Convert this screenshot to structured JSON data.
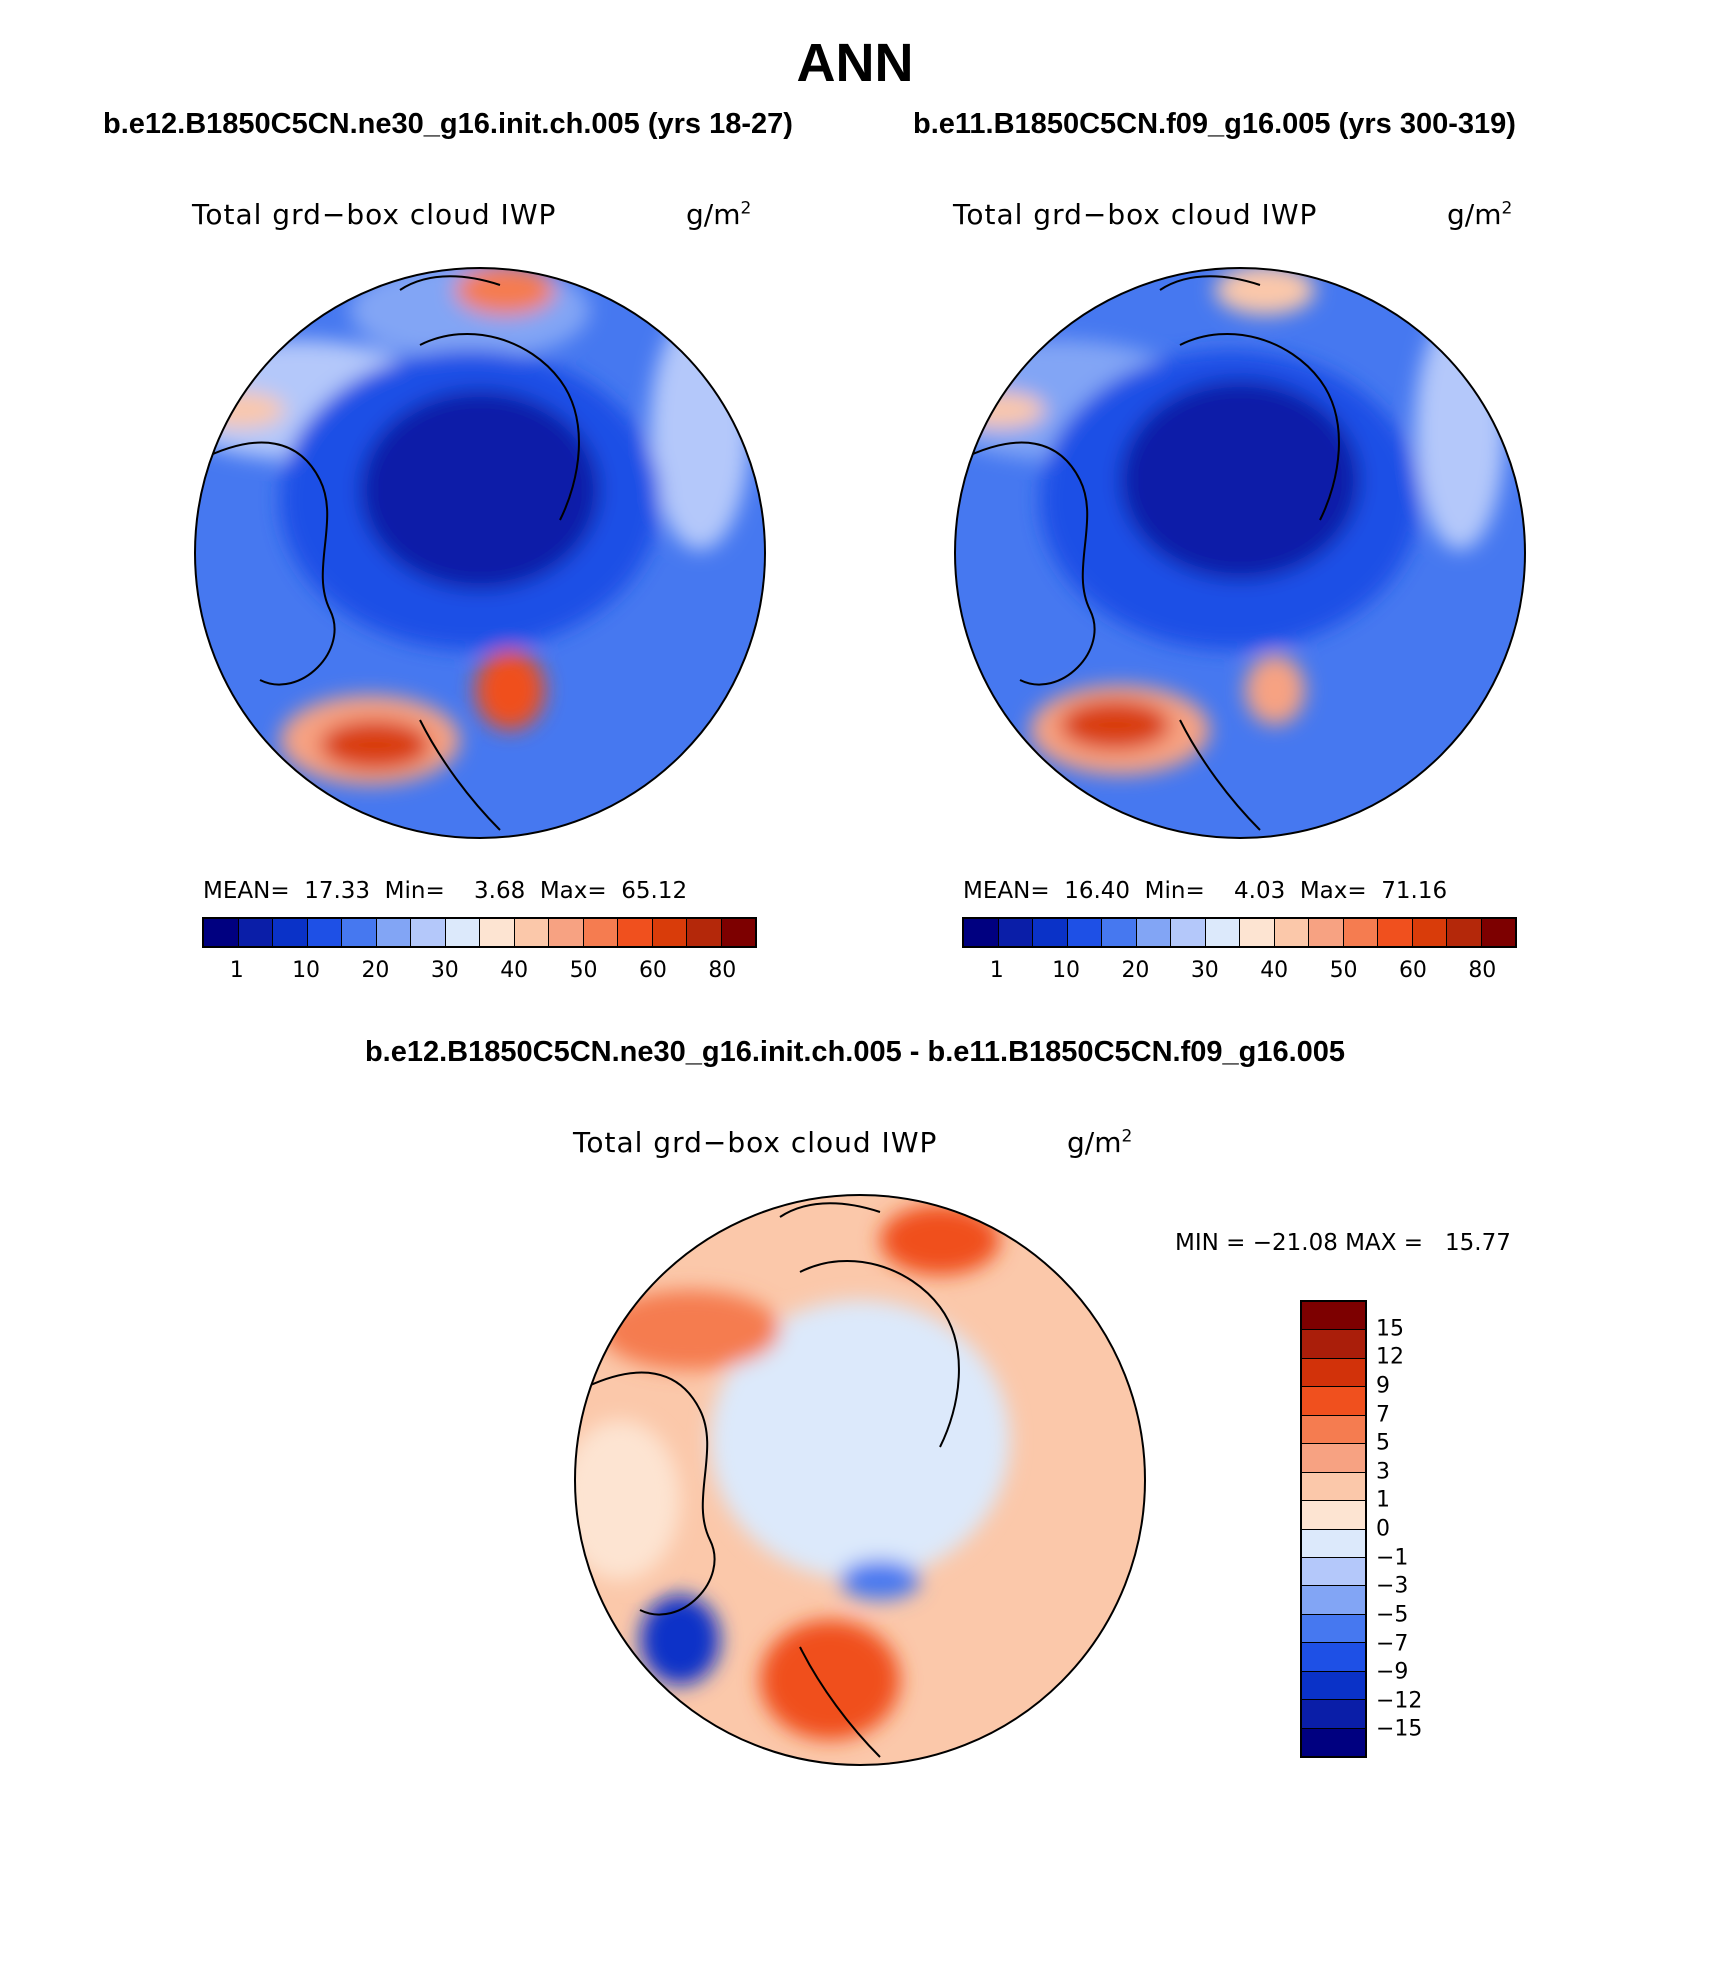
{
  "main_title": "ANN",
  "panels": {
    "left": {
      "case": "b.e12.B1850C5CN.ne30_g16.init.ch.005 (yrs 18-27)",
      "variable": "Total grd−box cloud IWP",
      "units_base": "g/m",
      "units_exp": "2",
      "stats_text": "MEAN=  17.33  Min=    3.68  Max=  65.12"
    },
    "right": {
      "case": "b.e11.B1850C5CN.f09_g16.005 (yrs 300-319)",
      "variable": "Total grd−box cloud IWP",
      "units_base": "g/m",
      "units_exp": "2",
      "stats_text": "MEAN=  16.40  Min=    4.03  Max=  71.16"
    },
    "diff": {
      "case": "b.e12.B1850C5CN.ne30_g16.init.ch.005 - b.e11.B1850C5CN.f09_g16.005",
      "variable": "Total grd−box cloud IWP",
      "units_base": "g/m",
      "units_exp": "2",
      "stats_text": "MIN = −21.08 MAX =   15.77"
    }
  },
  "colorbar_abs": {
    "colors": [
      "#000080",
      "#0a1ea8",
      "#0a32c8",
      "#1e50e6",
      "#4678f0",
      "#82a5f5",
      "#b4c8fa",
      "#dce9fb",
      "#fde4d2",
      "#fbc8aa",
      "#f7a282",
      "#f57c50",
      "#f0501e",
      "#d93c0a",
      "#b4280a",
      "#7d0000"
    ],
    "ticks": [
      {
        "label": "1",
        "index": 1
      },
      {
        "label": "10",
        "index": 3
      },
      {
        "label": "20",
        "index": 5
      },
      {
        "label": "30",
        "index": 7
      },
      {
        "label": "40",
        "index": 9
      },
      {
        "label": "50",
        "index": 11
      },
      {
        "label": "60",
        "index": 13
      },
      {
        "label": "80",
        "index": 15
      }
    ]
  },
  "colorbar_diff": {
    "colors": [
      "#7d0000",
      "#aa1e0a",
      "#d2320a",
      "#f0501e",
      "#f57c50",
      "#f7a282",
      "#fbc8aa",
      "#fde4d2",
      "#dce9fb",
      "#b4c8fa",
      "#82a5f5",
      "#4678f0",
      "#1e50e6",
      "#0a32c8",
      "#0a1ea8",
      "#000080"
    ],
    "ticks": [
      "15",
      "12",
      "9",
      "7",
      "5",
      "3",
      "1",
      "0",
      "−1",
      "−3",
      "−5",
      "−7",
      "−9",
      "−12",
      "−15"
    ]
  }
}
